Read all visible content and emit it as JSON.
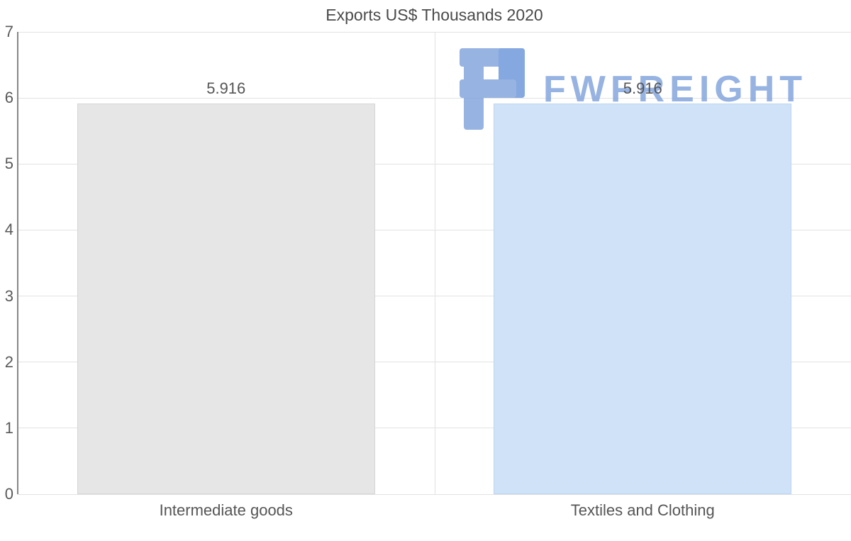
{
  "chart_data": {
    "type": "bar",
    "title": "Exports US$ Thousands 2020",
    "categories": [
      "Intermediate goods",
      "Textiles and Clothing"
    ],
    "values": [
      5.916,
      5.916
    ],
    "value_labels": [
      "5.916",
      "5.916"
    ],
    "bar_colors": [
      "#e6e6e6",
      "#cfe2f8"
    ],
    "bar_border_colors": [
      "#d6d6d6",
      "#bed5f0"
    ],
    "xlabel": "",
    "ylabel": "",
    "ylim": [
      0,
      7
    ],
    "yticks": [
      0,
      1,
      2,
      3,
      4,
      5,
      6,
      7
    ],
    "grid": true,
    "legend": "none"
  },
  "watermark": {
    "text": "FWFREIGHT",
    "color_primary": "#7fa3dc",
    "color_dark": "#6a95d8"
  }
}
